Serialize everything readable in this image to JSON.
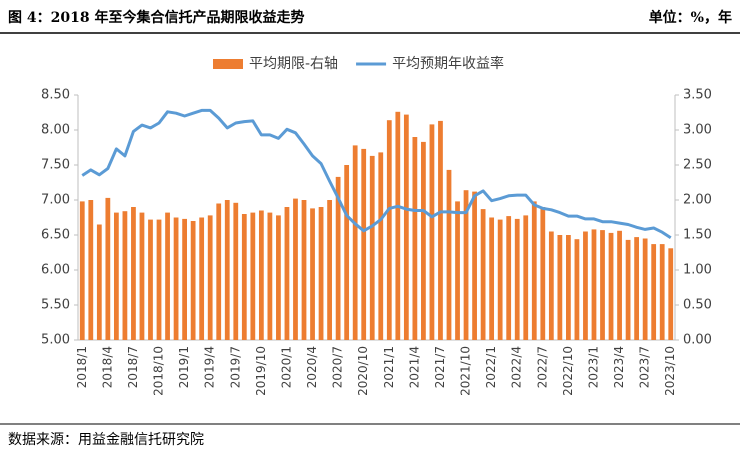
{
  "chart_data": {
    "type": "bar_line",
    "title": "图 4：2018 年至今集合信托产品期限收益走势",
    "unit": "单位：%，年",
    "source": "数据来源：用益金融信托研究院",
    "categories": [
      "2018/1",
      null,
      null,
      "2018/4",
      null,
      null,
      "2018/7",
      null,
      null,
      "2018/10",
      null,
      null,
      "2019/1",
      null,
      null,
      "2019/4",
      null,
      null,
      "2019/7",
      null,
      null,
      "2019/10",
      null,
      null,
      "2020/1",
      null,
      null,
      "2020/4",
      null,
      null,
      "2020/7",
      null,
      null,
      "2020/10",
      null,
      null,
      "2021/1",
      null,
      null,
      "2021/4",
      null,
      null,
      "2021/7",
      null,
      null,
      "2021/10",
      null,
      null,
      "2022/1",
      null,
      null,
      "2022/4",
      null,
      null,
      "2022/7",
      null,
      null,
      "2022/10",
      null,
      null,
      "2023/1",
      null,
      null,
      "2023/4",
      null,
      null,
      "2023/7",
      null,
      null,
      "2023/10"
    ],
    "series": [
      {
        "name": "平均期限-右轴",
        "kind": "bar",
        "axis": "y2",
        "color": "#ed7d31",
        "values": [
          1.98,
          2.0,
          1.65,
          2.03,
          1.82,
          1.84,
          1.9,
          1.82,
          1.72,
          1.72,
          1.82,
          1.75,
          1.73,
          1.7,
          1.75,
          1.78,
          1.95,
          2.0,
          1.96,
          1.8,
          1.82,
          1.85,
          1.82,
          1.78,
          1.9,
          2.02,
          2.0,
          1.88,
          1.9,
          2.0,
          2.33,
          2.5,
          2.78,
          2.73,
          2.63,
          2.68,
          3.14,
          3.26,
          3.22,
          2.9,
          2.83,
          3.08,
          3.13,
          2.43,
          1.98,
          2.14,
          2.12,
          1.87,
          1.75,
          1.72,
          1.77,
          1.73,
          1.78,
          1.98,
          1.9,
          1.55,
          1.5,
          1.5,
          1.44,
          1.55,
          1.58,
          1.57,
          1.53,
          1.56,
          1.43,
          1.47,
          1.45,
          1.37,
          1.37,
          1.31
        ]
      },
      {
        "name": "平均预期年收益率",
        "kind": "line",
        "axis": "y",
        "color": "#5b9bd5",
        "values": [
          7.35,
          7.43,
          7.36,
          7.45,
          7.73,
          7.63,
          7.98,
          8.07,
          8.03,
          8.1,
          8.26,
          8.24,
          8.2,
          8.24,
          8.28,
          8.28,
          8.17,
          8.03,
          8.1,
          8.12,
          8.13,
          7.93,
          7.93,
          7.88,
          8.01,
          7.96,
          7.8,
          7.63,
          7.52,
          7.27,
          7.03,
          6.78,
          6.66,
          6.56,
          6.63,
          6.72,
          6.88,
          6.91,
          6.87,
          6.85,
          6.85,
          6.76,
          6.83,
          6.83,
          6.82,
          6.82,
          7.06,
          7.13,
          6.99,
          7.02,
          7.06,
          7.07,
          7.07,
          6.93,
          6.88,
          6.86,
          6.82,
          6.77,
          6.77,
          6.73,
          6.73,
          6.69,
          6.69,
          6.67,
          6.65,
          6.61,
          6.58,
          6.6,
          6.54,
          6.46
        ]
      }
    ],
    "ylim": [
      5,
      8.5
    ],
    "yticks": [
      {
        "value": 5,
        "label": "5.00"
      },
      {
        "value": 5.5,
        "label": "5.50"
      },
      {
        "value": 6,
        "label": "6.00"
      },
      {
        "value": 6.5,
        "label": "6.50"
      },
      {
        "value": 7,
        "label": "7.00"
      },
      {
        "value": 7.5,
        "label": "7.50"
      },
      {
        "value": 8,
        "label": "8.00"
      },
      {
        "value": 8.5,
        "label": "8.50"
      }
    ],
    "y2lim": [
      0,
      3.5
    ],
    "y2ticks": [
      {
        "value": 0,
        "label": "0.00"
      },
      {
        "value": 0.5,
        "label": "0.50"
      },
      {
        "value": 1,
        "label": "1.00"
      },
      {
        "value": 1.5,
        "label": "1.50"
      },
      {
        "value": 2,
        "label": "2.00"
      },
      {
        "value": 2.5,
        "label": "2.50"
      },
      {
        "value": 3,
        "label": "3.00"
      },
      {
        "value": 3.5,
        "label": "3.50"
      }
    ]
  }
}
